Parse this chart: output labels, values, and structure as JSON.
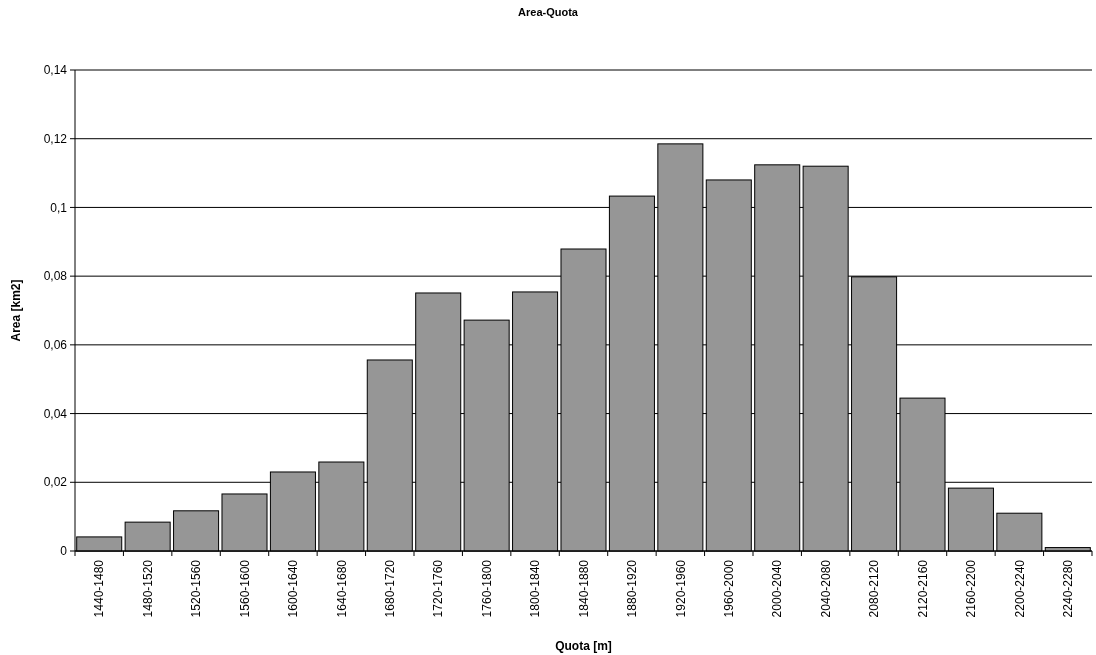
{
  "chart_data": {
    "type": "bar",
    "title": "Area-Quota",
    "xlabel": "Quota [m]",
    "ylabel": "Area [km2]",
    "categories": [
      "1440-1480",
      "1480-1520",
      "1520-1560",
      "1560-1600",
      "1600-1640",
      "1640-1680",
      "1680-1720",
      "1720-1760",
      "1760-1800",
      "1800-1840",
      "1840-1880",
      "1880-1920",
      "1920-1960",
      "1960-2000",
      "2000-2040",
      "2040-2080",
      "2080-2120",
      "2120-2160",
      "2160-2200",
      "2200-2240",
      "2240-2280"
    ],
    "values": [
      0.0041,
      0.0084,
      0.0117,
      0.0166,
      0.023,
      0.0259,
      0.0556,
      0.0751,
      0.0672,
      0.0754,
      0.0879,
      0.1033,
      0.1185,
      0.108,
      0.1124,
      0.112,
      0.0798,
      0.0445,
      0.0183,
      0.011,
      0.001
    ],
    "color": "#969696",
    "ylim": [
      0,
      0.14
    ],
    "yticks": [
      {
        "value": 0,
        "label": "0"
      },
      {
        "value": 0.02,
        "label": "0,02"
      },
      {
        "value": 0.04,
        "label": "0,04"
      },
      {
        "value": 0.06,
        "label": "0,06"
      },
      {
        "value": 0.08,
        "label": "0,08"
      },
      {
        "value": 0.1,
        "label": "0,1"
      },
      {
        "value": 0.12,
        "label": "0,12"
      },
      {
        "value": 0.14,
        "label": "0,14"
      }
    ],
    "grid": "y"
  }
}
